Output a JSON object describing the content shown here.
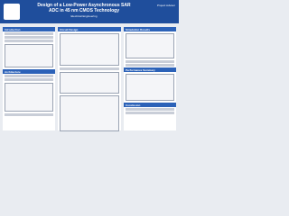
{
  "header": {
    "title": "Design of a Low-Power Asynchronous SAR ADC in 45 nm CMOS Technology",
    "subtitle": "Electrical Engineering",
    "advisor": "Project Advisor"
  },
  "sections": [
    "Introduction",
    "Architecture",
    "Circuit Design",
    "Simulation Results",
    "Performance Summary",
    "Conclusion"
  ]
}
